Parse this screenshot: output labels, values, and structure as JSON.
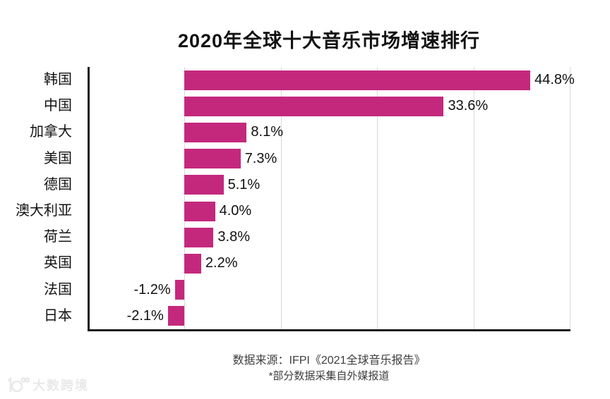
{
  "title": "2020年全球十大音乐市场增速排行",
  "chart_data": {
    "type": "bar",
    "orientation": "horizontal",
    "title": "2020年全球十大音乐市场增速排行",
    "categories": [
      "韩国",
      "中国",
      "加拿大",
      "美国",
      "德国",
      "澳大利亚",
      "荷兰",
      "英国",
      "法国",
      "日本"
    ],
    "values": [
      44.8,
      33.6,
      8.1,
      7.3,
      5.1,
      4.0,
      3.8,
      2.2,
      -1.2,
      -2.1
    ],
    "value_labels": [
      "44.8%",
      "33.6%",
      "8.1%",
      "7.3%",
      "5.1%",
      "4.0%",
      "3.8%",
      "2.2%",
      "-1.2%",
      "-2.1%"
    ],
    "xlabel": "",
    "ylabel": "",
    "xlim": [
      -12.5,
      50
    ],
    "gridlines": [
      0,
      12.5,
      25,
      37.5,
      50
    ],
    "grid": "vertical-only",
    "legend": "none"
  },
  "footer": {
    "source": "数据来源：IFPI《2021全球音乐报告》",
    "disclaimer": "*部分数据采集自外媒报道"
  },
  "watermark": {
    "text": "大数跨境"
  },
  "colors": {
    "bar": "#C4287D",
    "axis": "#1A1A1A",
    "gridline": "#D9D9D9",
    "label_text": "#111111",
    "footer_text": "#3E3E3E",
    "watermark": "#E9E9E9"
  }
}
